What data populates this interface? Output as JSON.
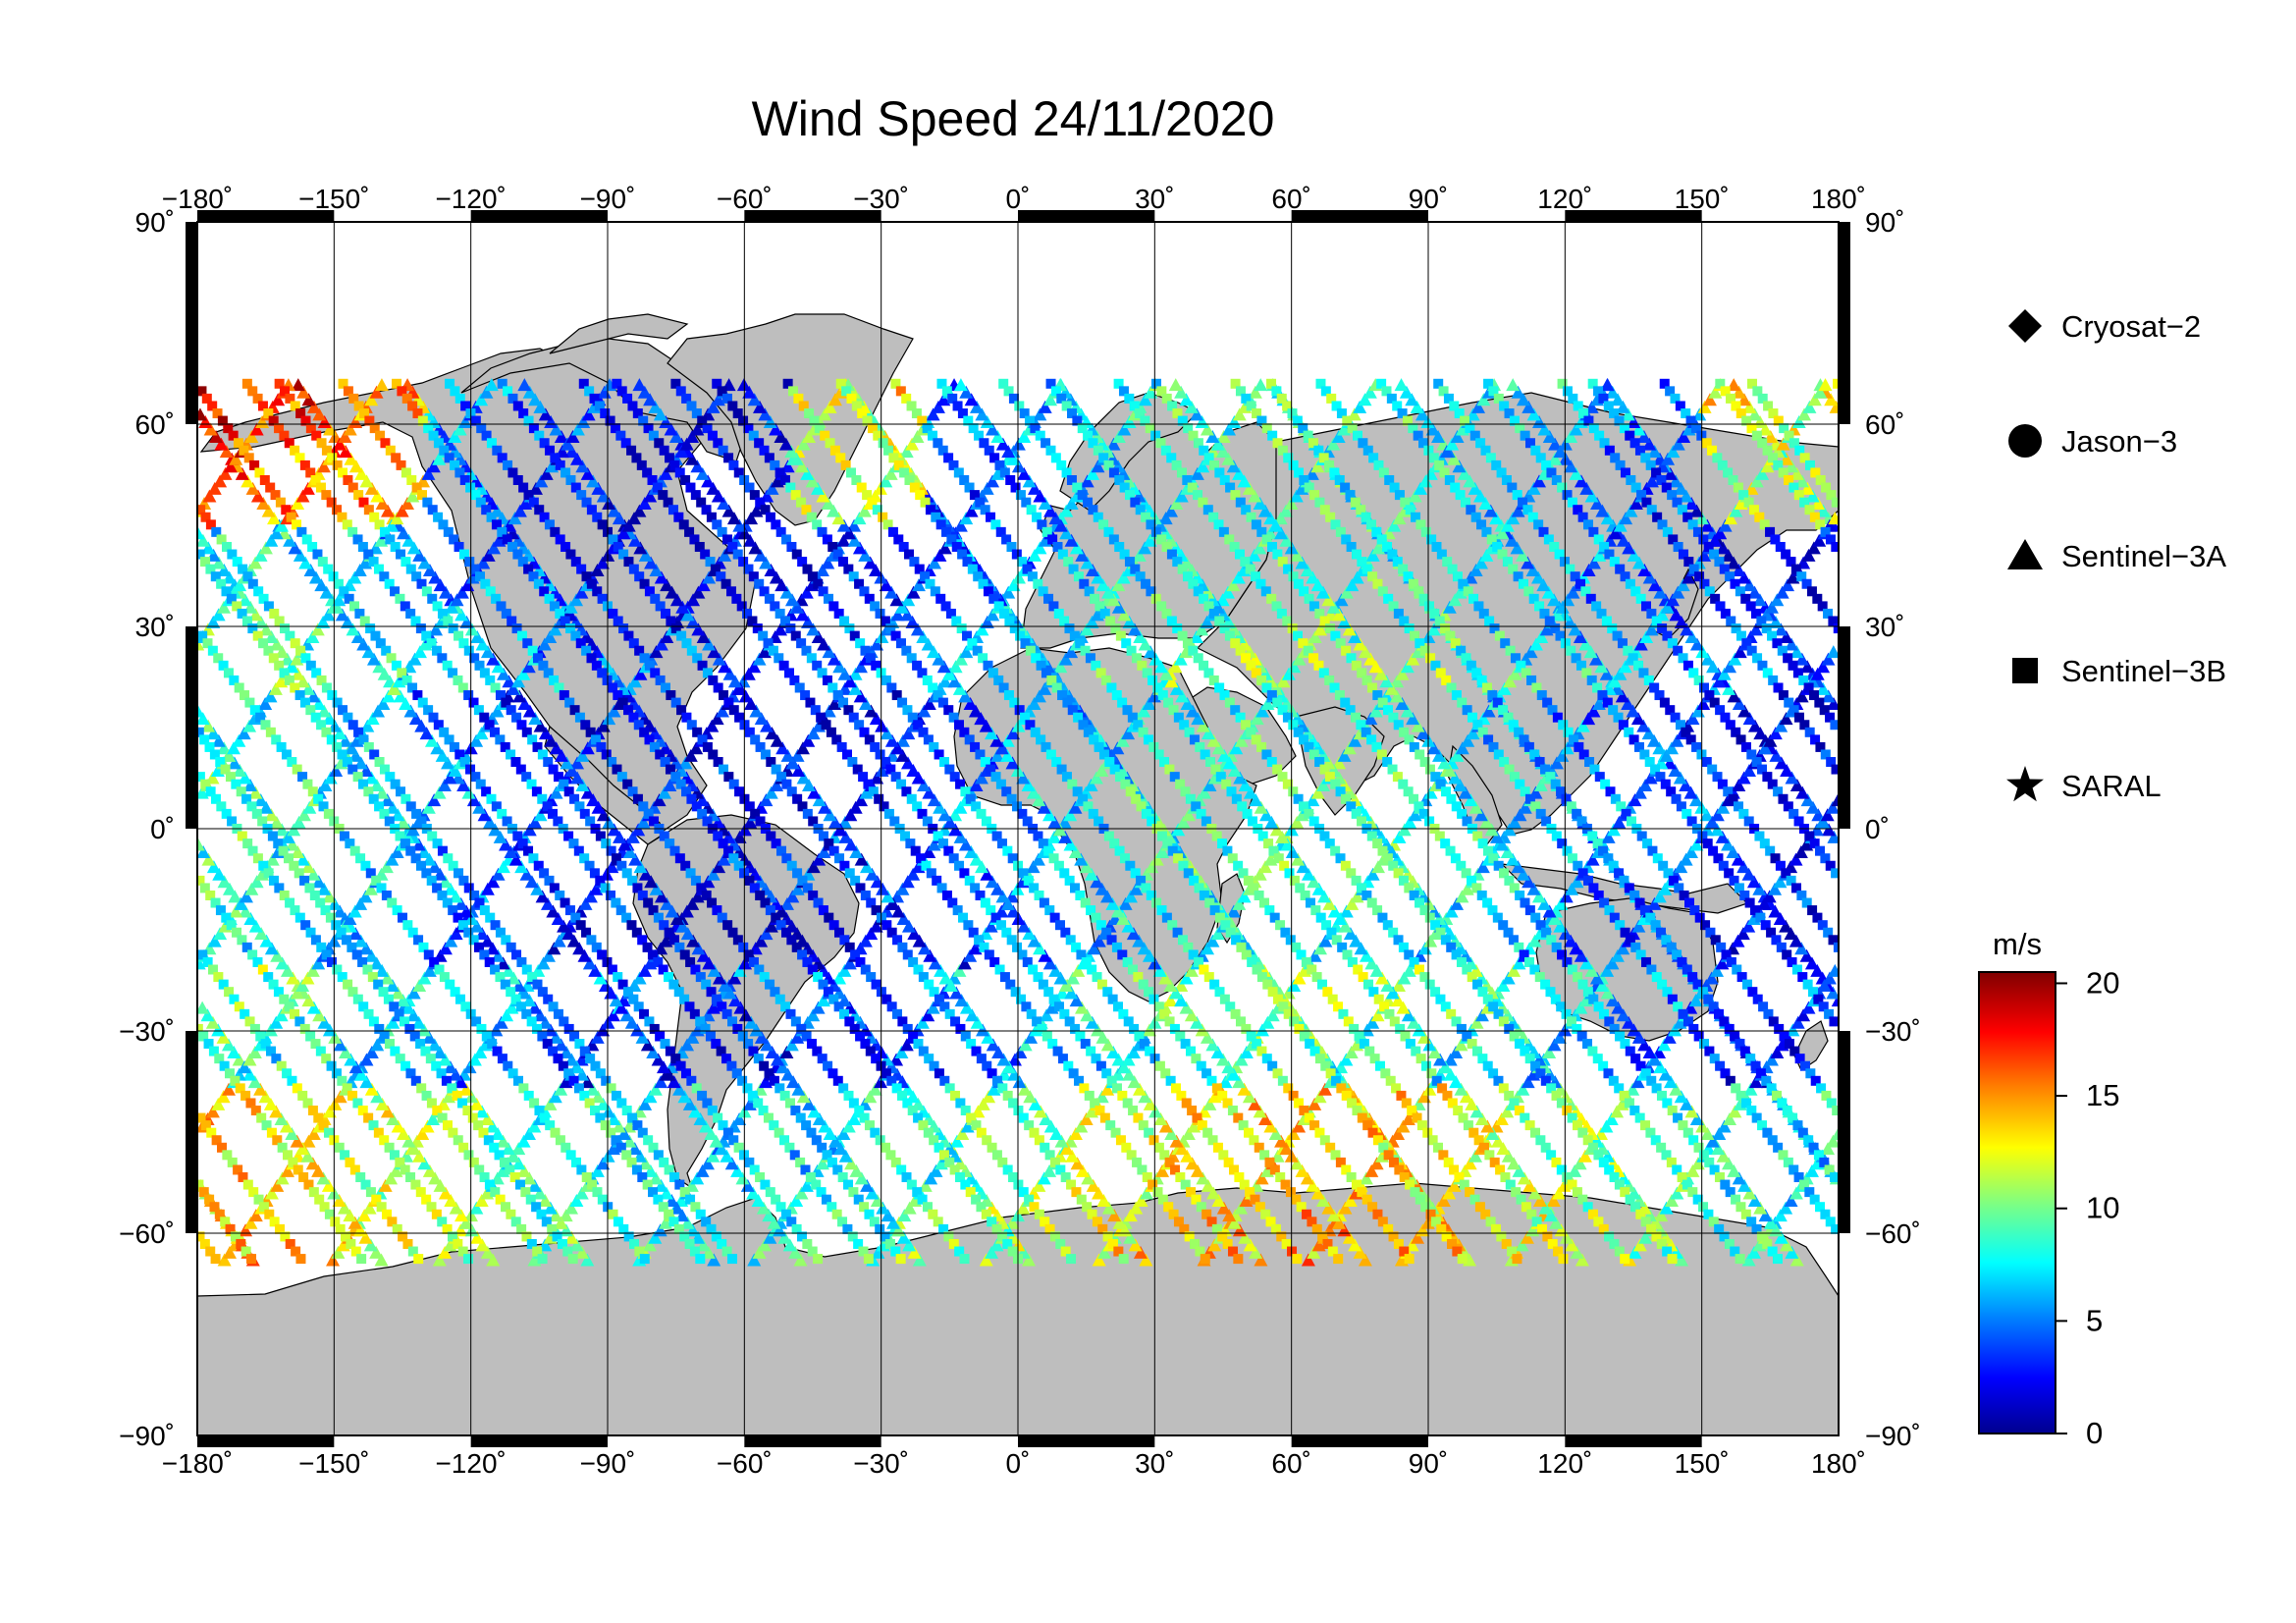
{
  "title": "Wind Speed 24/11/2020",
  "x_ticks": [
    "−180˚",
    "−150˚",
    "−120˚",
    "−90˚",
    "−60˚",
    "−30˚",
    "0˚",
    "30˚",
    "60˚",
    "90˚",
    "120˚",
    "150˚",
    "180˚"
  ],
  "y_ticks": [
    "90˚",
    "60˚",
    "30˚",
    "0˚",
    "−30˚",
    "−60˚",
    "−90˚"
  ],
  "lon_values": [
    -180,
    -150,
    -120,
    -90,
    -60,
    -30,
    0,
    30,
    60,
    90,
    120,
    150,
    180
  ],
  "lat_values": [
    90,
    60,
    30,
    0,
    -30,
    -60,
    -90
  ],
  "legend": [
    {
      "label": "Cryosat−2",
      "icon": "diamond-icon"
    },
    {
      "label": "Jason−3",
      "icon": "circle-icon"
    },
    {
      "label": "Sentinel−3A",
      "icon": "triangle-icon"
    },
    {
      "label": "Sentinel−3B",
      "icon": "square-icon"
    },
    {
      "label": "SARAL",
      "icon": "star-icon"
    }
  ],
  "colorbar": {
    "unit": "m/s",
    "ticks": [
      "20",
      "15",
      "10",
      "5",
      "0"
    ],
    "tick_values": [
      20,
      15,
      10,
      5,
      0
    ],
    "min": 0,
    "max": 20.5,
    "colors": [
      "#00008f",
      "#0000ff",
      "#0080ff",
      "#00ffff",
      "#80ff80",
      "#ffff00",
      "#ff8000",
      "#ff0000",
      "#800000"
    ]
  },
  "colors": {
    "land": "#bebebe",
    "ocean": "#ffffff",
    "frame": "#000000"
  }
}
